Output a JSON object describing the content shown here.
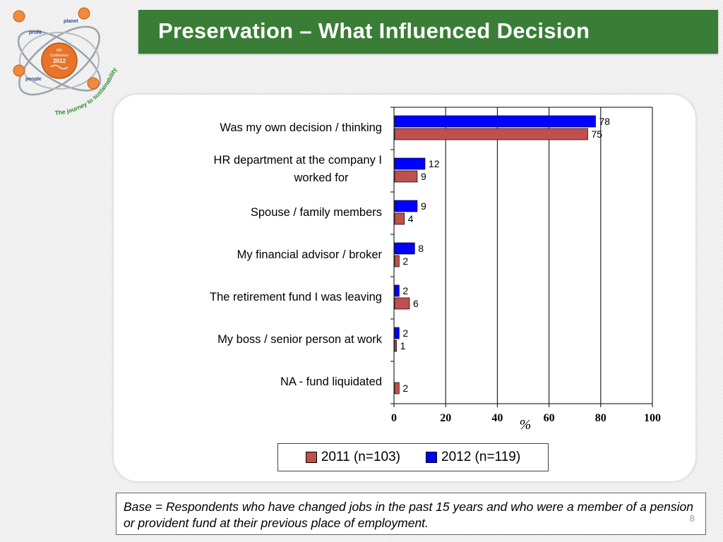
{
  "logo": {
    "words": [
      "profit",
      "planet",
      "people"
    ],
    "center_lines": [
      "IRF",
      "Conference",
      "2012"
    ],
    "tagline": "The journey to sustainability"
  },
  "title": "Preservation – What Influenced Decision",
  "chart_data": {
    "type": "bar",
    "orientation": "horizontal",
    "categories": [
      "Was my own decision / thinking",
      "HR department at the company I worked for",
      "Spouse / family members",
      "My financial advisor / broker",
      "The retirement fund I was leaving",
      "My boss / senior person at work",
      "NA - fund liquidated"
    ],
    "series": [
      {
        "name": "2011 (n=103)",
        "color": "#c0504d",
        "values": [
          75,
          9,
          4,
          2,
          6,
          1,
          2
        ]
      },
      {
        "name": "2012 (n=119)",
        "color": "#0000ff",
        "values": [
          78,
          12,
          9,
          8,
          2,
          2,
          null
        ]
      }
    ],
    "xlabel": "%",
    "xlim": [
      0,
      100
    ],
    "xticks": [
      0,
      20,
      40,
      60,
      80,
      100
    ],
    "grid": "vertical",
    "legend_position": "bottom"
  },
  "legend": {
    "item_2011": "2011 (n=103)",
    "item_2012": "2012 (n=119)"
  },
  "base_note": "Base = Respondents who have changed jobs in the past 15 years and who were a member of a pension or provident fund at their previous place of employment.",
  "page_number": "8"
}
